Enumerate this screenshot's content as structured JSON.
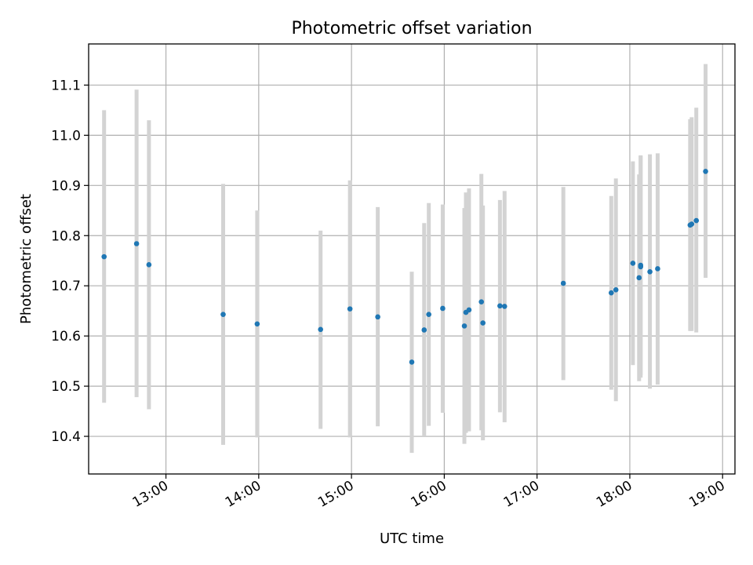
{
  "chart_data": {
    "type": "scatter",
    "title": "Photometric offset variation",
    "xlabel": "UTC time",
    "ylabel": "Photometric offset",
    "x_unit": "UTC time (HH:MM)",
    "xlim": [
      "12:10",
      "19:08"
    ],
    "ylim": [
      10.325,
      11.182
    ],
    "x_ticks": [
      "13:00",
      "14:00",
      "15:00",
      "16:00",
      "17:00",
      "18:00",
      "19:00"
    ],
    "y_ticks": [
      10.4,
      10.5,
      10.6,
      10.7,
      10.8,
      10.9,
      11.0,
      11.1
    ],
    "grid": true,
    "colors": {
      "point": "#1f77b4",
      "errorbar": "#d3d3d3",
      "grid": "#b0b0b0"
    },
    "points": [
      {
        "x": "12:20",
        "y": 10.758,
        "ylow": 10.467,
        "yhigh": 11.05
      },
      {
        "x": "12:41",
        "y": 10.784,
        "ylow": 10.478,
        "yhigh": 11.091
      },
      {
        "x": "12:49",
        "y": 10.742,
        "ylow": 10.454,
        "yhigh": 11.03
      },
      {
        "x": "13:37",
        "y": 10.643,
        "ylow": 10.383,
        "yhigh": 10.903
      },
      {
        "x": "13:59",
        "y": 10.624,
        "ylow": 10.398,
        "yhigh": 10.85
      },
      {
        "x": "14:40",
        "y": 10.613,
        "ylow": 10.415,
        "yhigh": 10.81
      },
      {
        "x": "14:59",
        "y": 10.654,
        "ylow": 10.398,
        "yhigh": 10.91
      },
      {
        "x": "15:17",
        "y": 10.638,
        "ylow": 10.42,
        "yhigh": 10.857
      },
      {
        "x": "15:39",
        "y": 10.548,
        "ylow": 10.367,
        "yhigh": 10.728
      },
      {
        "x": "15:47",
        "y": 10.612,
        "ylow": 10.4,
        "yhigh": 10.825
      },
      {
        "x": "15:50",
        "y": 10.643,
        "ylow": 10.421,
        "yhigh": 10.865
      },
      {
        "x": "15:59",
        "y": 10.655,
        "ylow": 10.447,
        "yhigh": 10.862
      },
      {
        "x": "16:13",
        "y": 10.62,
        "ylow": 10.385,
        "yhigh": 10.855
      },
      {
        "x": "16:14",
        "y": 10.647,
        "ylow": 10.407,
        "yhigh": 10.886
      },
      {
        "x": "16:16",
        "y": 10.652,
        "ylow": 10.41,
        "yhigh": 10.894
      },
      {
        "x": "16:24",
        "y": 10.668,
        "ylow": 10.412,
        "yhigh": 10.923
      },
      {
        "x": "16:25",
        "y": 10.626,
        "ylow": 10.392,
        "yhigh": 10.86
      },
      {
        "x": "16:36",
        "y": 10.66,
        "ylow": 10.448,
        "yhigh": 10.871
      },
      {
        "x": "16:39",
        "y": 10.659,
        "ylow": 10.428,
        "yhigh": 10.889
      },
      {
        "x": "17:17",
        "y": 10.705,
        "ylow": 10.512,
        "yhigh": 10.897
      },
      {
        "x": "17:48",
        "y": 10.686,
        "ylow": 10.493,
        "yhigh": 10.879
      },
      {
        "x": "17:51",
        "y": 10.692,
        "ylow": 10.47,
        "yhigh": 10.914
      },
      {
        "x": "18:02",
        "y": 10.745,
        "ylow": 10.542,
        "yhigh": 10.948
      },
      {
        "x": "18:06",
        "y": 10.716,
        "ylow": 10.51,
        "yhigh": 10.922
      },
      {
        "x": "18:07",
        "y": 10.738,
        "ylow": 10.517,
        "yhigh": 10.959
      },
      {
        "x": "18:07",
        "y": 10.741,
        "ylow": 10.522,
        "yhigh": 10.96
      },
      {
        "x": "18:13",
        "y": 10.728,
        "ylow": 10.495,
        "yhigh": 10.962
      },
      {
        "x": "18:18",
        "y": 10.734,
        "ylow": 10.503,
        "yhigh": 10.964
      },
      {
        "x": "18:39",
        "y": 10.821,
        "ylow": 10.61,
        "yhigh": 11.032
      },
      {
        "x": "18:40",
        "y": 10.823,
        "ylow": 10.61,
        "yhigh": 11.036
      },
      {
        "x": "18:43",
        "y": 10.83,
        "ylow": 10.607,
        "yhigh": 11.055
      },
      {
        "x": "18:49",
        "y": 10.928,
        "ylow": 10.716,
        "yhigh": 11.142
      }
    ]
  }
}
